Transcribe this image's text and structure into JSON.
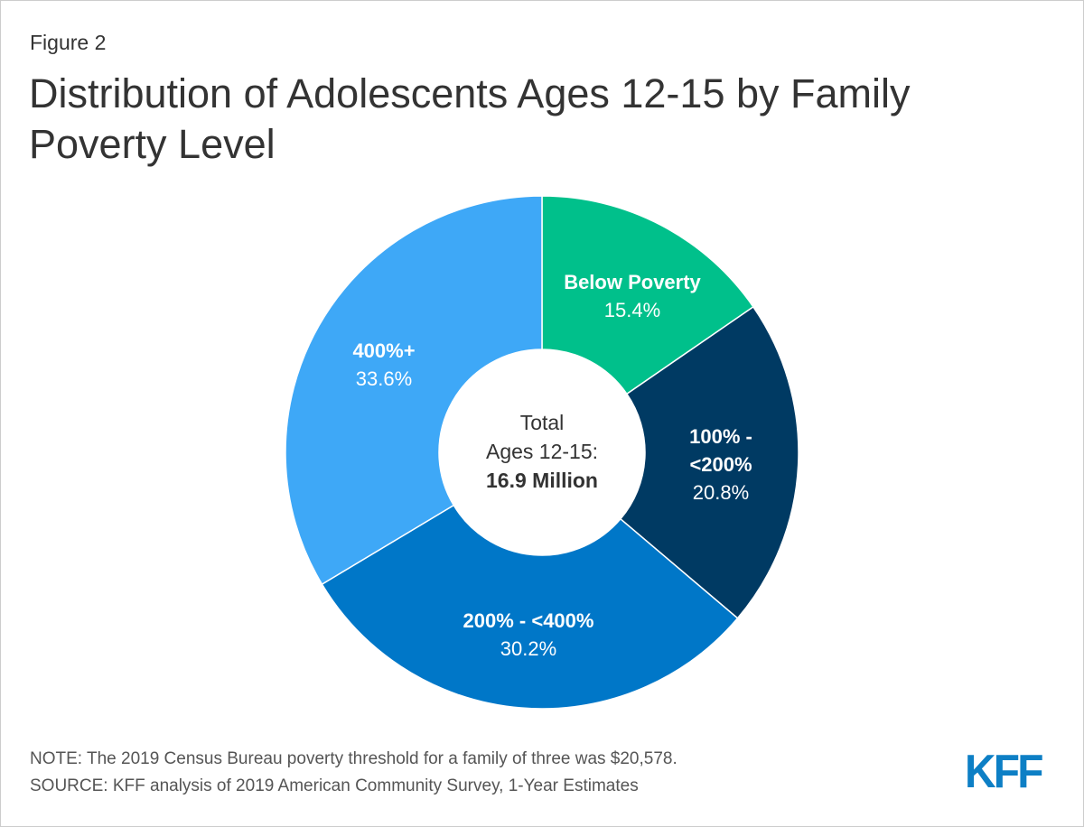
{
  "figure_label": "Figure 2",
  "title": "Distribution of Adolescents Ages 12-15 by Family Poverty Level",
  "chart_data": {
    "type": "pie",
    "subtype": "donut",
    "title": "Distribution of Adolescents Ages 12-15 by Family Poverty Level",
    "center_label": {
      "line1": "Total",
      "line2": "Ages 12-15:",
      "line3": "16.9 Million"
    },
    "slices": [
      {
        "label": "Below Poverty",
        "value": 15.4,
        "display": "15.4%",
        "color": "#00c08b"
      },
      {
        "label": "100% - <200%",
        "value": 20.8,
        "display": "20.8%",
        "color": "#003a63"
      },
      {
        "label": "200% - <400%",
        "value": 30.2,
        "display": "30.2%",
        "color": "#0077c8"
      },
      {
        "label": "400%+",
        "value": 33.6,
        "display": "33.6%",
        "color": "#3ea8f7"
      }
    ]
  },
  "notes": {
    "note": "NOTE: The 2019 Census Bureau poverty threshold for a family of three was $20,578.",
    "source": "SOURCE: KFF analysis of 2019 American Community Survey, 1-Year Estimates"
  },
  "logo": "KFF"
}
